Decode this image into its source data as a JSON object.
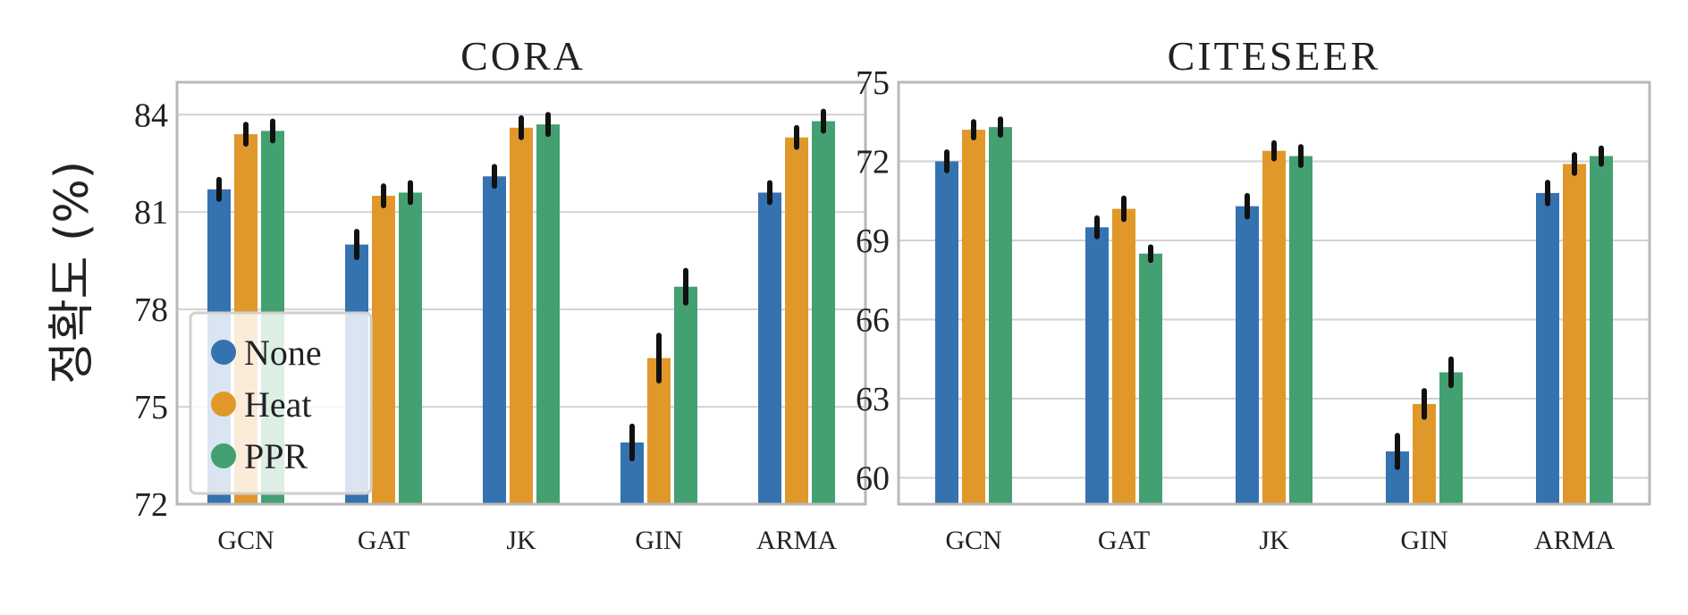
{
  "ylabel": "정확도 (%)",
  "legend": [
    "None",
    "Heat",
    "PPR"
  ],
  "colors": {
    "None": "#3572b0",
    "Heat": "#e0982b",
    "PPR": "#43a071"
  },
  "chart_data": [
    {
      "type": "bar",
      "title": "CORA",
      "categories": [
        "GCN",
        "GAT",
        "JK",
        "GIN",
        "ARMA"
      ],
      "ylim": [
        72,
        85
      ],
      "yticks": [
        72,
        75,
        78,
        81,
        84
      ],
      "grid": true,
      "legend_position": "bottom-left",
      "series": [
        {
          "name": "None",
          "values": [
            81.7,
            80.0,
            82.1,
            73.9,
            81.6
          ],
          "err": [
            0.3,
            0.4,
            0.3,
            0.5,
            0.3
          ]
        },
        {
          "name": "Heat",
          "values": [
            83.4,
            81.5,
            83.6,
            76.5,
            83.3
          ],
          "err": [
            0.3,
            0.3,
            0.3,
            0.7,
            0.3
          ]
        },
        {
          "name": "PPR",
          "values": [
            83.5,
            81.6,
            83.7,
            78.7,
            83.8
          ],
          "err": [
            0.3,
            0.3,
            0.3,
            0.5,
            0.3
          ]
        }
      ]
    },
    {
      "type": "bar",
      "title": "CITESEER",
      "categories": [
        "GCN",
        "GAT",
        "JK",
        "GIN",
        "ARMA"
      ],
      "ylim": [
        59,
        75
      ],
      "yticks": [
        60,
        63,
        66,
        69,
        72,
        75
      ],
      "grid": true,
      "series": [
        {
          "name": "None",
          "values": [
            72.0,
            69.5,
            70.3,
            61.0,
            70.8
          ],
          "err": [
            0.35,
            0.35,
            0.4,
            0.6,
            0.4
          ]
        },
        {
          "name": "Heat",
          "values": [
            73.2,
            70.2,
            72.4,
            62.8,
            71.9
          ],
          "err": [
            0.3,
            0.4,
            0.3,
            0.5,
            0.35
          ]
        },
        {
          "name": "PPR",
          "values": [
            73.3,
            68.5,
            72.2,
            64.0,
            72.2
          ],
          "err": [
            0.3,
            0.25,
            0.35,
            0.5,
            0.3
          ]
        }
      ]
    }
  ]
}
